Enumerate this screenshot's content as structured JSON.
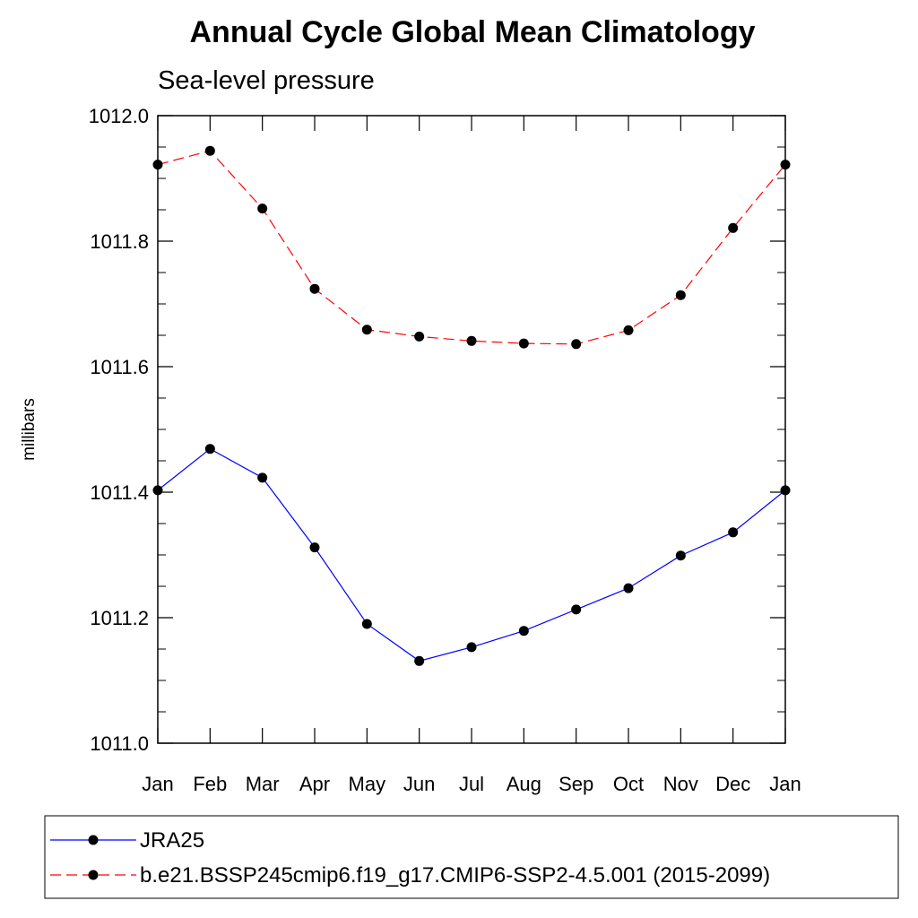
{
  "chart_data": {
    "type": "line",
    "title": "Annual Cycle Global Mean Climatology",
    "subtitle": "Sea-level pressure",
    "xlabel": "",
    "ylabel": "millibars",
    "categories": [
      "Jan",
      "Feb",
      "Mar",
      "Apr",
      "May",
      "Jun",
      "Jul",
      "Aug",
      "Sep",
      "Oct",
      "Nov",
      "Dec",
      "Jan"
    ],
    "ylim": [
      1011.0,
      1012.0
    ],
    "yticks": [
      "1011.0",
      "1011.2",
      "1011.4",
      "1011.6",
      "1011.8",
      "1012.0"
    ],
    "series": [
      {
        "name": "JRA25",
        "color": "#0000ff",
        "dashed": false,
        "values": [
          1011.403,
          1011.469,
          1011.423,
          1011.312,
          1011.19,
          1011.131,
          1011.153,
          1011.179,
          1011.213,
          1011.247,
          1011.299,
          1011.336,
          1011.403
        ]
      },
      {
        "name": "b.e21.BSSP245cmip6.f19_g17.CMIP6-SSP2-4.5.001 (2015-2099)",
        "color": "#ff0000",
        "dashed": true,
        "values": [
          1011.922,
          1011.944,
          1011.852,
          1011.724,
          1011.659,
          1011.648,
          1011.641,
          1011.637,
          1011.636,
          1011.658,
          1011.714,
          1011.821,
          1011.922
        ]
      }
    ],
    "grid": false,
    "legend_position": "bottom"
  }
}
